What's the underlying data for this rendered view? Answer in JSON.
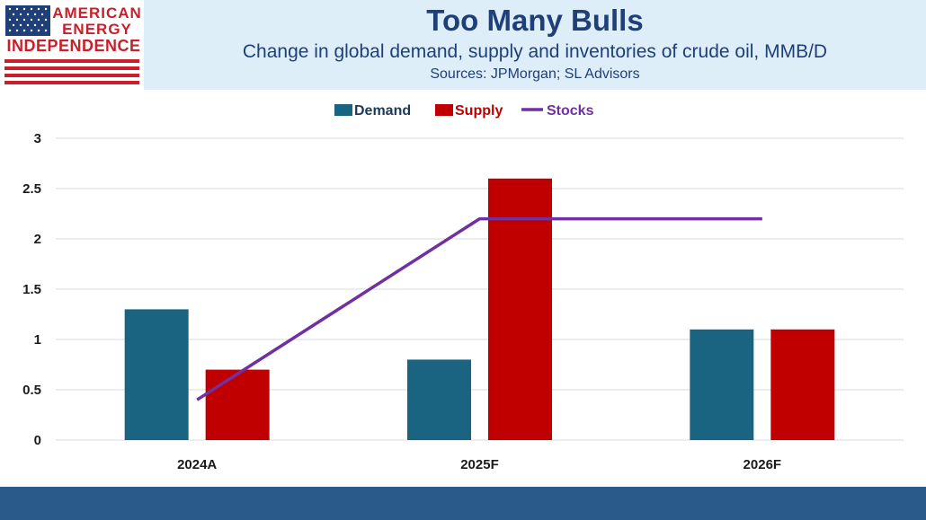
{
  "brand": {
    "line1": "AMERICAN",
    "line2": "ENERGY",
    "line3": "INDEPENDENCE"
  },
  "header": {
    "title": "Too Many Bulls",
    "subtitle": "Change in global demand, supply and inventories of crude oil, MMB/D",
    "source": "Sources: JPMorgan; SL Advisors"
  },
  "colors": {
    "demand": "#1a6482",
    "supply": "#c00000",
    "stocks": "#7030a0",
    "grid": "#d9d9d9"
  },
  "chart_data": {
    "type": "bar",
    "categories": [
      "2024A",
      "2025F",
      "2026F"
    ],
    "series": [
      {
        "name": "Demand",
        "type": "bar",
        "values": [
          1.3,
          0.8,
          1.1
        ]
      },
      {
        "name": "Supply",
        "type": "bar",
        "values": [
          0.7,
          2.6,
          1.1
        ]
      },
      {
        "name": "Stocks",
        "type": "line",
        "values": [
          0.4,
          2.2,
          2.2
        ]
      }
    ],
    "ylim": [
      0,
      3
    ],
    "yticks": [
      "0",
      "0.5",
      "1",
      "1.5",
      "2",
      "2.5",
      "3"
    ],
    "ytick_values": [
      0,
      0.5,
      1,
      1.5,
      2,
      2.5,
      3
    ],
    "legend_position": "top-center",
    "grid": true
  }
}
